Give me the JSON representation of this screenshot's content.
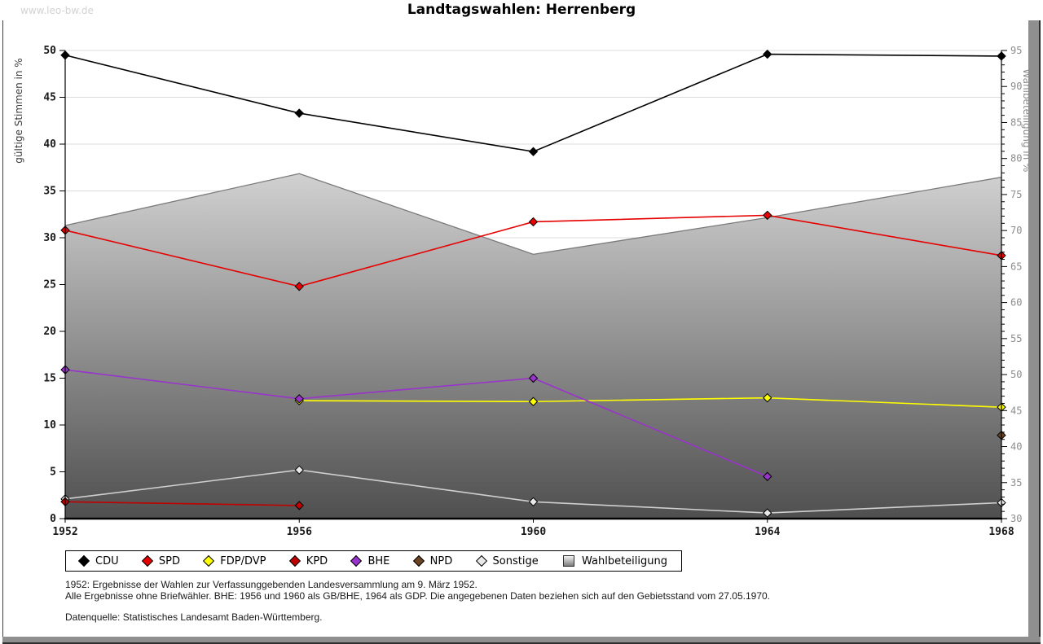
{
  "watermark": "www.leo-bw.de",
  "title": "Landtagswahlen: Herrenberg",
  "chart_data": {
    "type": "line",
    "x": [
      "1952",
      "1956",
      "1960",
      "1964",
      "1968"
    ],
    "ylabel_left": "gültige Stimmen in %",
    "ylabel_right": "Wahlbeteiligung in %",
    "y_left": {
      "min": 0,
      "max": 50,
      "step": 5
    },
    "y_right": {
      "min": 30,
      "max": 95,
      "step": 5,
      "minor_step": 1
    },
    "grid": true,
    "legend_position": "bottom",
    "series": [
      {
        "name": "CDU",
        "axis": "left",
        "color": "#000000",
        "values": [
          49.5,
          43.3,
          39.2,
          49.6,
          49.4
        ]
      },
      {
        "name": "SPD",
        "axis": "left",
        "color": "#e60000",
        "values": [
          30.8,
          24.8,
          31.7,
          32.4,
          28.1
        ]
      },
      {
        "name": "FDP/DVP",
        "axis": "left",
        "color": "#ffff00",
        "values": [
          null,
          12.6,
          12.5,
          12.9,
          11.9
        ]
      },
      {
        "name": "KPD",
        "axis": "left",
        "color": "#c00000",
        "values": [
          1.8,
          1.4,
          null,
          null,
          null
        ]
      },
      {
        "name": "BHE",
        "axis": "left",
        "color": "#9933cc",
        "values": [
          15.9,
          12.8,
          15.0,
          4.5,
          null
        ]
      },
      {
        "name": "NPD",
        "axis": "left",
        "color": "#6b4423",
        "values": [
          null,
          null,
          null,
          null,
          8.9
        ]
      },
      {
        "name": "Sonstige",
        "axis": "left",
        "color": "#cfcfcf",
        "marker_fill": "#e8e8e8",
        "values": [
          2.1,
          5.2,
          1.8,
          0.6,
          1.7
        ]
      },
      {
        "name": "Wahlbeteiligung",
        "axis": "right",
        "type": "area",
        "color": "#7a7a7a",
        "fill_top": "#ffffff",
        "fill_bottom": "#4f4f4f",
        "values": [
          70.7,
          77.9,
          66.7,
          71.8,
          77.4
        ]
      }
    ]
  },
  "footnotes": {
    "line1": "1952: Ergebnisse der Wahlen zur Verfassunggebenden Landesversammlung am 9. März 1952.",
    "line2": "Alle Ergebnisse ohne Briefwähler. BHE: 1956 und 1960 als GB/BHE, 1964 als GDP. Die angegebenen Daten beziehen sich auf den Gebietsstand vom 27.05.1970.",
    "source": "Datenquelle: Statistisches Landesamt Baden-Württemberg."
  }
}
